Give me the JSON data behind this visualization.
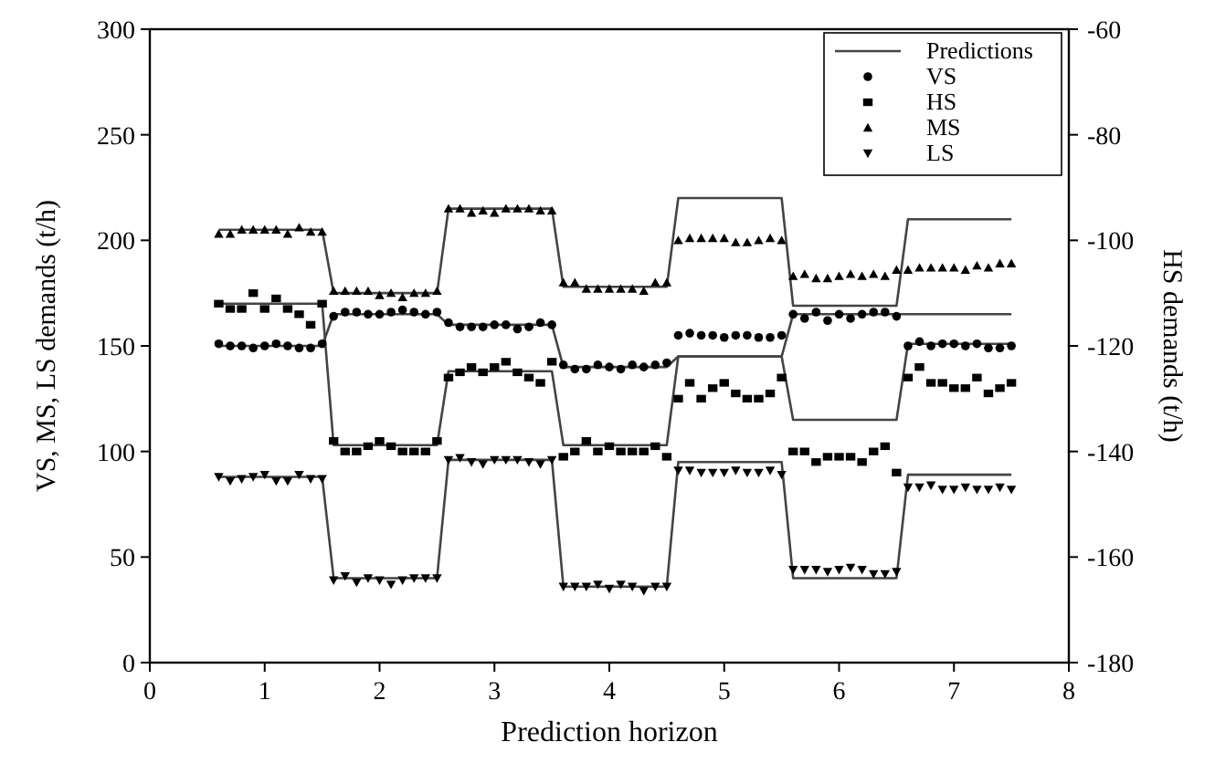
{
  "chart_data": {
    "type": "scatter",
    "xlabel": "Prediction horizon",
    "ylabel": "VS, MS, LS demands (t/h)",
    "y2label": "HS demands (t/h)",
    "xlim": [
      0,
      8
    ],
    "xticks": [
      0,
      1,
      2,
      3,
      4,
      5,
      6,
      7,
      8
    ],
    "ylim": [
      0,
      300
    ],
    "yticks": [
      0,
      50,
      100,
      150,
      200,
      250,
      300
    ],
    "y2lim": [
      -180,
      -60
    ],
    "y2ticks": [
      -180,
      -160,
      -140,
      -120,
      -100,
      -80,
      -60
    ],
    "legend": "top right",
    "grid": false,
    "x": [
      0.6,
      0.7,
      0.8,
      0.9,
      1.0,
      1.1,
      1.2,
      1.3,
      1.4,
      1.5,
      1.6,
      1.7,
      1.8,
      1.9,
      2.0,
      2.1,
      2.2,
      2.3,
      2.4,
      2.5,
      2.6,
      2.7,
      2.8,
      2.9,
      3.0,
      3.1,
      3.2,
      3.3,
      3.4,
      3.5,
      3.6,
      3.7,
      3.8,
      3.9,
      4.0,
      4.1,
      4.2,
      4.3,
      4.4,
      4.5,
      4.6,
      4.7,
      4.8,
      4.9,
      5.0,
      5.1,
      5.2,
      5.3,
      5.4,
      5.5,
      5.6,
      5.7,
      5.8,
      5.9,
      6.0,
      6.1,
      6.2,
      6.3,
      6.4,
      6.5,
      6.6,
      6.7,
      6.8,
      6.9,
      7.0,
      7.1,
      7.2,
      7.3,
      7.4,
      7.5
    ],
    "series": [
      {
        "name": "Predictions",
        "type": "line",
        "marker": "none",
        "line_style": "solid",
        "color": "#444444",
        "x": [
          0.6,
          1.5,
          1.6,
          2.5,
          2.6,
          3.5,
          3.6,
          4.5,
          4.6,
          5.5,
          5.6,
          6.5,
          6.6,
          7.5
        ],
        "values": [
          205,
          205,
          175,
          175,
          215,
          215,
          178,
          178,
          220,
          220,
          169,
          169,
          210,
          210
        ]
      },
      {
        "type": "line",
        "marker": "none",
        "line_style": "solid",
        "color": "#444444",
        "x": [
          0.6,
          1.5,
          1.6,
          2.5,
          2.6,
          3.5,
          3.6,
          4.5,
          4.6,
          5.5,
          5.6,
          6.5,
          6.6,
          7.5
        ],
        "values": [
          150,
          150,
          165,
          165,
          160,
          160,
          140,
          140,
          145,
          145,
          165,
          165,
          165,
          165
        ]
      },
      {
        "type": "line",
        "marker": "none",
        "line_style": "solid",
        "color": "#444444",
        "x": [
          0.6,
          1.5,
          1.6,
          2.5,
          2.6,
          3.5,
          3.6,
          4.5,
          4.6,
          5.5,
          5.6,
          6.5,
          6.6,
          7.5
        ],
        "values": [
          170,
          170,
          103,
          103,
          138,
          138,
          103,
          103,
          145,
          145,
          115,
          115,
          151,
          151
        ]
      },
      {
        "type": "line",
        "marker": "none",
        "line_style": "solid",
        "color": "#444444",
        "x": [
          0.6,
          1.5,
          1.6,
          2.5,
          2.6,
          3.5,
          3.6,
          4.5,
          4.6,
          5.5,
          5.6,
          6.5,
          6.6,
          7.5
        ],
        "values": [
          88,
          88,
          40,
          40,
          96,
          96,
          36,
          36,
          95,
          95,
          40,
          40,
          89,
          89
        ]
      },
      {
        "name": "VS",
        "marker": "circle",
        "color": "#000000",
        "values": [
          151,
          150,
          150,
          149,
          150,
          151,
          150,
          149,
          149,
          151,
          164,
          166,
          166,
          165,
          165,
          166,
          167,
          166,
          165,
          166,
          161,
          159,
          159,
          159,
          160,
          160,
          158,
          159,
          161,
          160,
          141,
          139,
          139,
          141,
          140,
          139,
          141,
          140,
          141,
          142,
          155,
          156,
          155,
          155,
          154,
          155,
          155,
          154,
          154,
          155,
          165,
          163,
          166,
          162,
          165,
          163,
          165,
          166,
          166,
          164,
          150,
          152,
          150,
          151,
          151,
          150,
          151,
          149,
          149,
          150
        ]
      },
      {
        "name": "HS",
        "marker": "square",
        "axis": "y2",
        "color": "#000000",
        "values": [
          -112,
          -113,
          -113,
          -110,
          -113,
          -111,
          -113,
          -114,
          -116,
          -112,
          -138,
          -140,
          -140,
          -139,
          -138,
          -139,
          -140,
          -140,
          -140,
          -138,
          -126,
          -125,
          -124,
          -125,
          -124,
          -123,
          -125,
          -126,
          -127,
          -123,
          -141,
          -140,
          -138,
          -140,
          -139,
          -140,
          -140,
          -140,
          -139,
          -141,
          -130,
          -127,
          -130,
          -128,
          -127,
          -129,
          -130,
          -130,
          -129,
          -126,
          -140,
          -140,
          -142,
          -141,
          -141,
          -141,
          -142,
          -140,
          -139,
          -144,
          -126,
          -124,
          -127,
          -127,
          -128,
          -128,
          -126,
          -129,
          -128,
          -127
        ]
      },
      {
        "name": "MS",
        "marker": "triangle",
        "color": "#000000",
        "values": [
          203,
          203,
          205,
          205,
          205,
          205,
          203,
          206,
          204,
          204,
          176,
          176,
          176,
          176,
          174,
          175,
          173,
          175,
          175,
          176,
          215,
          215,
          213,
          214,
          213,
          215,
          215,
          215,
          214,
          214,
          180,
          180,
          177,
          177,
          177,
          177,
          177,
          176,
          180,
          180,
          200,
          201,
          201,
          201,
          201,
          199,
          199,
          200,
          201,
          200,
          183,
          184,
          182,
          182,
          183,
          184,
          183,
          184,
          183,
          186,
          186,
          187,
          187,
          187,
          187,
          186,
          188,
          187,
          189,
          189
        ]
      },
      {
        "name": "LS",
        "marker": "triangle-down",
        "color": "#000000",
        "values": [
          88,
          86,
          87,
          88,
          89,
          86,
          86,
          89,
          87,
          87,
          39,
          41,
          38,
          40,
          39,
          37,
          39,
          40,
          40,
          40,
          96,
          97,
          95,
          94,
          96,
          96,
          96,
          95,
          94,
          96,
          36,
          36,
          36,
          37,
          35,
          37,
          36,
          34,
          36,
          36,
          91,
          91,
          90,
          90,
          90,
          91,
          90,
          90,
          91,
          89,
          44,
          44,
          44,
          43,
          44,
          45,
          44,
          42,
          42,
          43,
          83,
          83,
          84,
          82,
          82,
          83,
          82,
          82,
          83,
          82
        ]
      }
    ]
  }
}
